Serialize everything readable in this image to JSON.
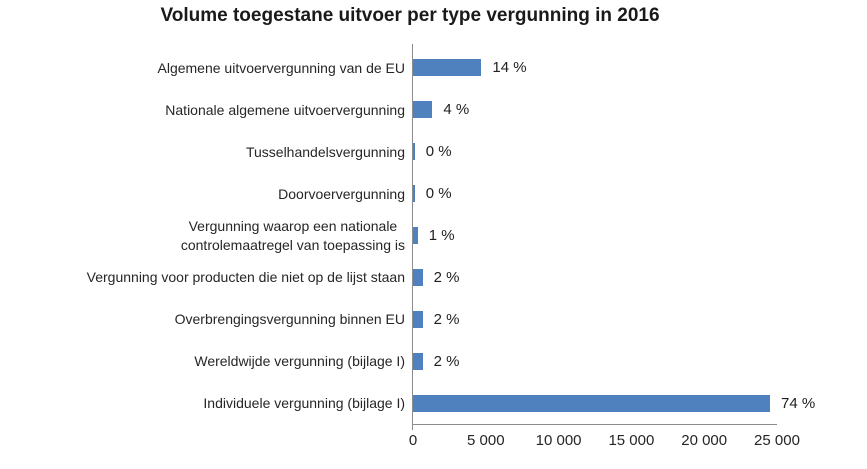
{
  "colors": {
    "bar": "#4e81bd",
    "axis_line": "#8c8c8c",
    "label_text": "#262626",
    "title_text": "#1a1a1a",
    "background": "#ffffff"
  },
  "chart_data": {
    "type": "bar",
    "orientation": "horizontal",
    "title": "Volume toegestane uitvoer per type vergunning in 2016",
    "xlabel": "",
    "ylabel": "",
    "grid": false,
    "legend": false,
    "xlim": [
      0,
      25000
    ],
    "x_ticks": [
      "0",
      "5 000",
      "10 000",
      "15 000",
      "20 000",
      "25 000"
    ],
    "categories": [
      "Algemene uitvoervergunning van de EU",
      "Nationale algemene uitvoervergunning",
      "Tusselhandelsvergunning",
      "Doorvoervergunning",
      "Vergunning waarop een nationale\ncontrolemaatregel van toepassing is",
      "Vergunning voor producten die niet op de lijst staan",
      "Overbrengingsvergunning binnen EU",
      "Wereldwijde vergunning (bijlage I)",
      "Individuele vergunning (bijlage I)"
    ],
    "values": [
      4700,
      1330,
      120,
      120,
      330,
      660,
      660,
      660,
      24520
    ],
    "percent_values": [
      14,
      4,
      0,
      0,
      1,
      2,
      2,
      2,
      74
    ],
    "value_labels": [
      "14 %",
      "4 %",
      "0 %",
      "0 %",
      "1 %",
      "2 %",
      "2 %",
      "2 %",
      "74 %"
    ]
  }
}
